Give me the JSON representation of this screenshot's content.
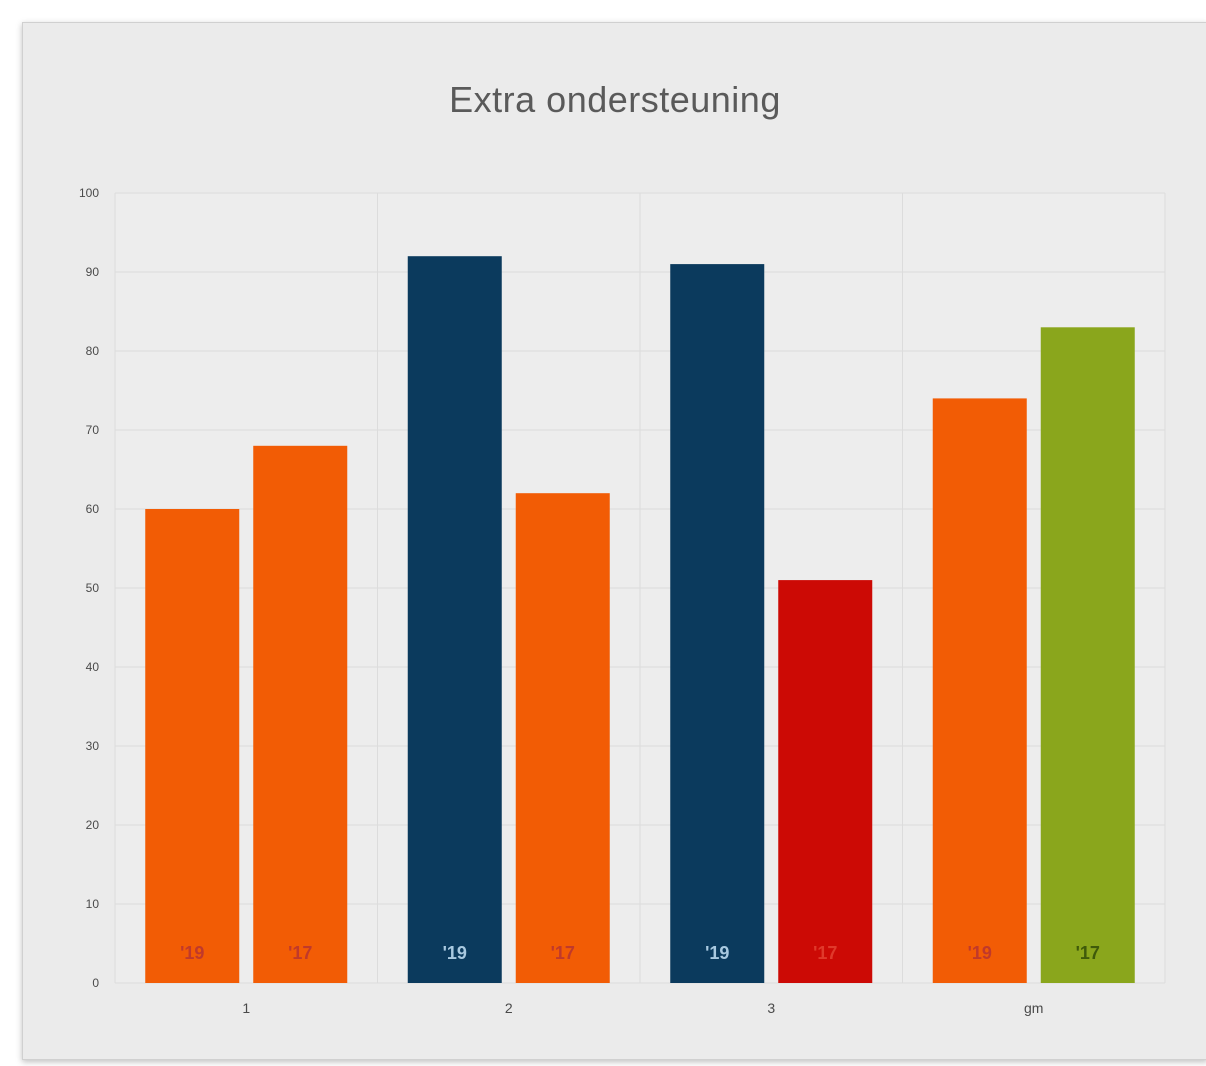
{
  "chart_data": {
    "type": "bar",
    "title": "Extra ondersteuning",
    "xlabel": "",
    "ylabel": "",
    "ylim": [
      0,
      100
    ],
    "yticks": [
      0,
      10,
      20,
      30,
      40,
      50,
      60,
      70,
      80,
      90,
      100
    ],
    "grid": true,
    "categories": [
      "1",
      "2",
      "3",
      "gm"
    ],
    "groups": [
      {
        "category": "1",
        "bars": [
          {
            "label": "'19",
            "value": 60,
            "color": "#f25c05",
            "label_color": "#c0392b"
          },
          {
            "label": "'17",
            "value": 68,
            "color": "#f25c05",
            "label_color": "#c0392b"
          }
        ]
      },
      {
        "category": "2",
        "bars": [
          {
            "label": "'19",
            "value": 92,
            "color": "#0b3a5d",
            "label_color": "#a9c9e0"
          },
          {
            "label": "'17",
            "value": 62,
            "color": "#f25c05",
            "label_color": "#c0392b"
          }
        ]
      },
      {
        "category": "3",
        "bars": [
          {
            "label": "'19",
            "value": 91,
            "color": "#0b3a5d",
            "label_color": "#a9c9e0"
          },
          {
            "label": "'17",
            "value": 51,
            "color": "#cc0a05",
            "label_color": "#e0392b"
          }
        ]
      },
      {
        "category": "gm",
        "bars": [
          {
            "label": "'19",
            "value": 74,
            "color": "#f25c05",
            "label_color": "#c0392b"
          },
          {
            "label": "'17",
            "value": 83,
            "color": "#8aa61c",
            "label_color": "#3f5a0a"
          }
        ]
      }
    ]
  }
}
